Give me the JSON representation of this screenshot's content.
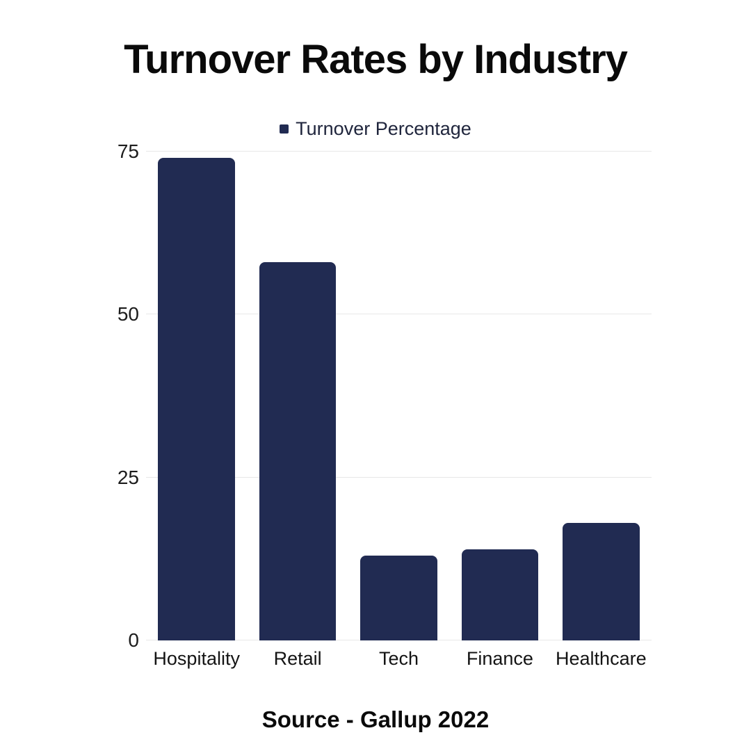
{
  "title": "Turnover Rates by Industry",
  "legend": {
    "label": "Turnover Percentage",
    "marker_color": "#212b52"
  },
  "source": "Source - Gallup 2022",
  "colors": {
    "bar": "#212b52",
    "grid": "#e7e7e7",
    "background": "#ffffff"
  },
  "chart_data": {
    "type": "bar",
    "categories": [
      "Hospitality",
      "Retail",
      "Tech",
      "Finance",
      "Healthcare"
    ],
    "values": [
      74,
      58,
      13,
      14,
      18
    ],
    "series_name": "Turnover Percentage",
    "title": "Turnover Rates by Industry",
    "xlabel": "",
    "ylabel": "",
    "ylim": [
      0,
      75
    ],
    "yticks": [
      0,
      25,
      50,
      75
    ],
    "grid": true,
    "legend_position": "top",
    "annotation": "Source - Gallup 2022"
  }
}
